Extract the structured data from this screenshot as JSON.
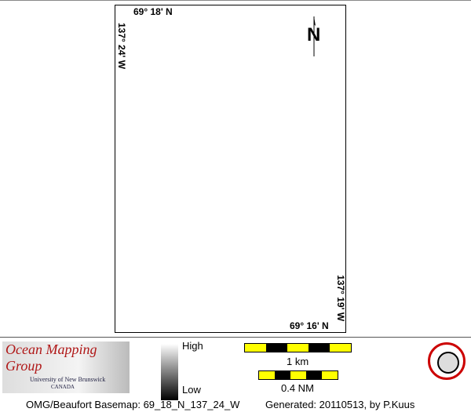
{
  "map": {
    "top_lat": "69° 18' N",
    "bottom_lat": "69° 16' N",
    "left_lon": "137° 24' W",
    "right_lon": "137° 19' W",
    "north_arrow": "N"
  },
  "legend": {
    "logo_title": "Ocean Mapping Group",
    "logo_university": "University of New Brunswick",
    "logo_country": "CANADA",
    "colorbar_high": "High",
    "colorbar_low": "Low",
    "scale_km": "1 km",
    "scale_nm": "0.4 NM",
    "scale_colors": [
      "#ffff00",
      "#000000"
    ]
  },
  "footer": {
    "basemap": "OMG/Beaufort Basemap: 69_18_N_137_24_W",
    "generated": "Generated: 20110513, by P.Kuus"
  }
}
